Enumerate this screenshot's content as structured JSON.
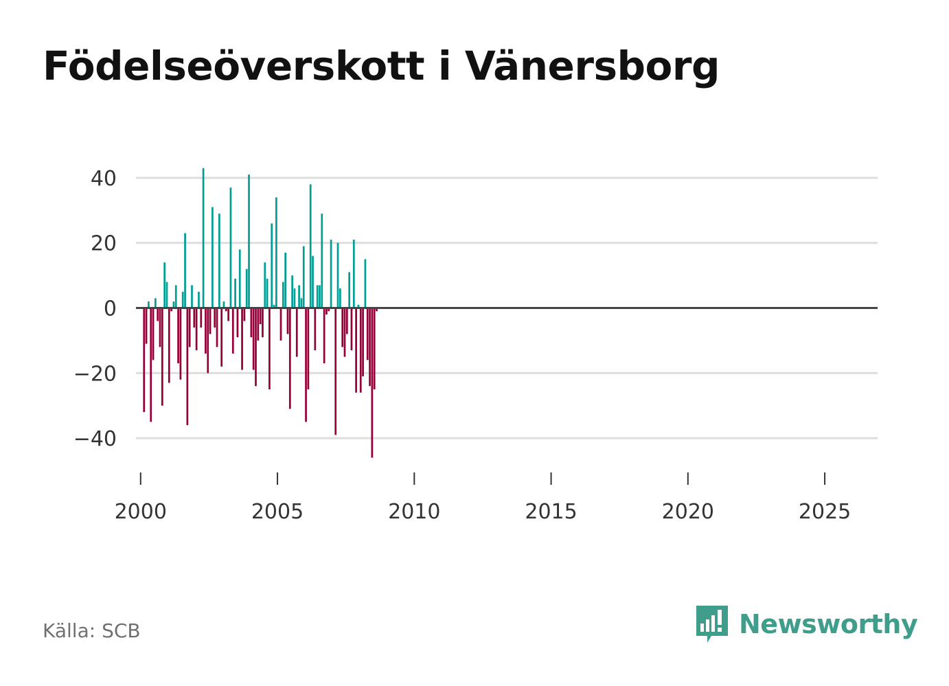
{
  "title": "Födelseöverskott i Vänersborg",
  "source": "Källa: SCB",
  "brand": {
    "name": "Newsworthy",
    "icon": "newsworthy-logo-icon",
    "color": "#3e9e8b"
  },
  "colors": {
    "positive": "#009e94",
    "negative": "#960038",
    "grid": "#dddddd",
    "zero": "#444444",
    "tick": "#333333"
  },
  "chart_data": {
    "type": "bar",
    "title": "Födelseöverskott i Vänersborg",
    "xlabel": "",
    "ylabel": "",
    "ylim": [
      -48,
      44
    ],
    "xlim": [
      1999.83,
      2026.93
    ],
    "yticks": [
      40,
      20,
      0,
      -20,
      -40
    ],
    "ytick_labels": [
      "40",
      "20",
      "0",
      "−20",
      "−40"
    ],
    "xticks": [
      2000,
      2005,
      2010,
      2015,
      2020,
      2025
    ],
    "xtick_labels": [
      "2000",
      "2005",
      "2010",
      "2015",
      "2020",
      "2025"
    ],
    "frequency": "monthly",
    "start": 2000.0,
    "values": [
      0,
      -32,
      -11,
      2,
      -35,
      -16,
      3,
      -4,
      -12,
      -30,
      14,
      8,
      -23,
      -1,
      2,
      7,
      -17,
      -22,
      5,
      23,
      -36,
      -12,
      7,
      -6,
      -13,
      5,
      -6,
      43,
      -14,
      -20,
      -8,
      31,
      -6,
      -12,
      29,
      -18,
      2,
      -1,
      -4,
      37,
      -14,
      9,
      -9,
      18,
      -19,
      -4,
      12,
      41,
      -9,
      -19,
      -24,
      -10,
      -5,
      -9,
      14,
      9,
      -25,
      26,
      1,
      34,
      0,
      -10,
      8,
      17,
      -8,
      -31,
      10,
      6,
      -15,
      7,
      3,
      19,
      -35,
      -25,
      38,
      16,
      -13,
      7,
      7,
      29,
      -17,
      -2,
      -1,
      21,
      0,
      -39,
      20,
      6,
      -12,
      -15,
      -8,
      11,
      -13,
      21,
      -26,
      1,
      -26,
      -21,
      15,
      -16,
      -24,
      -46,
      -25,
      -1
    ]
  }
}
